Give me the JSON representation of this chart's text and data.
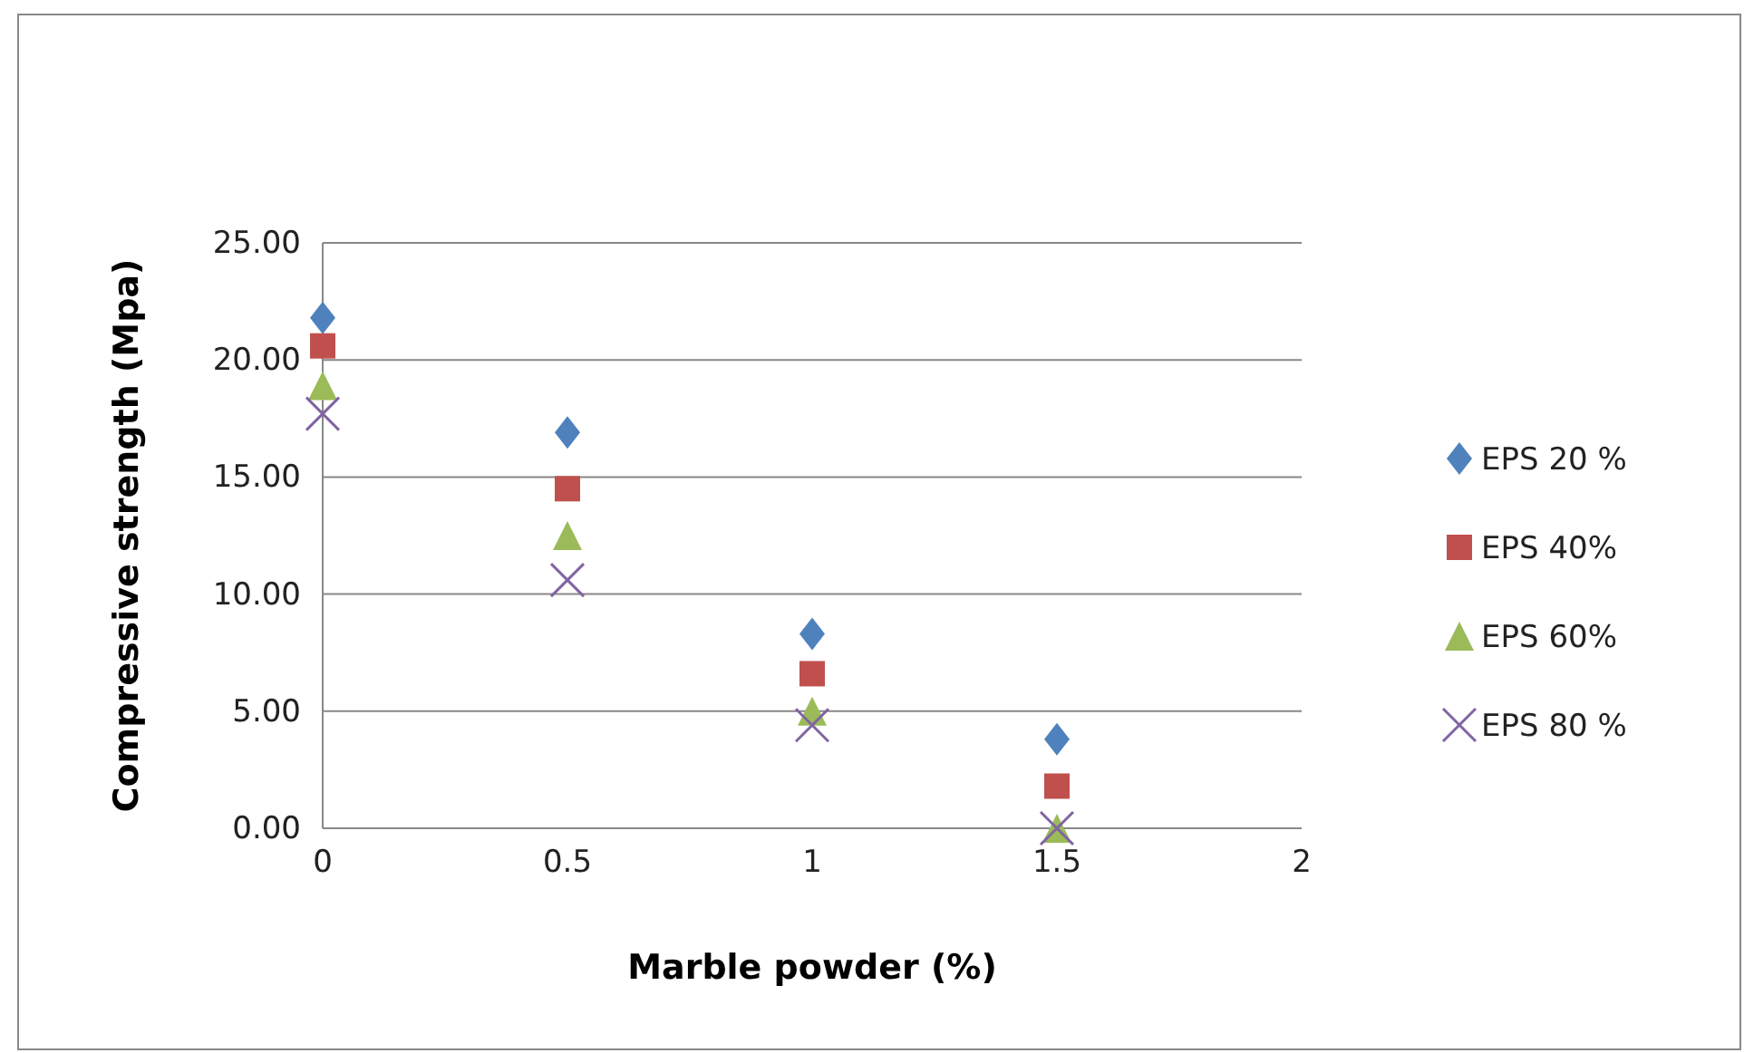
{
  "chart_data": {
    "type": "scatter",
    "xlabel": "Marble powder (%)",
    "ylabel": "Compressive strength (Mpa)",
    "x": [
      0,
      0.5,
      1,
      1.5
    ],
    "xlim": [
      0,
      2
    ],
    "xticks": [
      0,
      0.5,
      1,
      1.5,
      2
    ],
    "ylim": [
      0,
      25
    ],
    "yticks": [
      {
        "value": 0,
        "label": "0.00"
      },
      {
        "value": 5,
        "label": "5.00"
      },
      {
        "value": 10,
        "label": "10.00"
      },
      {
        "value": 15,
        "label": "15.00"
      },
      {
        "value": 20,
        "label": "20.00"
      },
      {
        "value": 25,
        "label": "25.00"
      }
    ],
    "grid": "y",
    "legend": "right",
    "series": [
      {
        "name": "EPS 20 %",
        "color": "#4f81bd",
        "marker": "diamond",
        "values": [
          21.8,
          16.9,
          8.3,
          3.8
        ]
      },
      {
        "name": "EPS 40%",
        "color": "#c0504d",
        "marker": "square",
        "values": [
          20.6,
          14.5,
          6.6,
          1.8
        ]
      },
      {
        "name": "EPS 60%",
        "color": "#9bbb59",
        "marker": "triangle",
        "values": [
          18.9,
          12.5,
          5.0,
          0
        ]
      },
      {
        "name": "EPS 80 %",
        "color": "#8064a2",
        "marker": "cross",
        "values": [
          17.7,
          10.6,
          4.4,
          0
        ]
      }
    ]
  }
}
